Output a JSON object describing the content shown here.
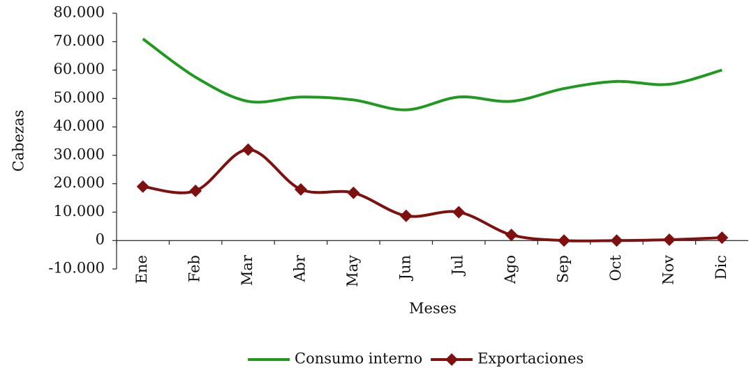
{
  "chart_data": {
    "type": "line",
    "x_label": "Meses",
    "y_label": "Cabezas",
    "categories": [
      "Ene",
      "Feb",
      "Mar",
      "Abr",
      "May",
      "Jun",
      "Jul",
      "Ago",
      "Sep",
      "Oct",
      "Nov",
      "Dic"
    ],
    "series": [
      {
        "name": "Consumo interno",
        "color": "#1f9a1f",
        "marker": "none",
        "smooth": true,
        "values": [
          71000,
          57500,
          49000,
          50500,
          49500,
          46000,
          50500,
          49000,
          53500,
          56000,
          55000,
          60000
        ]
      },
      {
        "name": "Exportaciones",
        "color": "#7f1010",
        "marker": "diamond",
        "smooth": true,
        "values": [
          19000,
          17500,
          32000,
          18000,
          16800,
          8700,
          10000,
          2000,
          0,
          0,
          300,
          1000
        ]
      }
    ],
    "ylim": [
      -10000,
      80000
    ],
    "yticks": [
      {
        "value": -10000,
        "label": "-10.000"
      },
      0,
      {
        "value": 10000,
        "label": "10.000"
      },
      {
        "value": 20000,
        "label": "20.000"
      },
      {
        "value": 30000,
        "label": "30.000"
      },
      {
        "value": 40000,
        "label": "40.000"
      },
      {
        "value": 50000,
        "label": "50.000"
      },
      {
        "value": 60000,
        "label": "60.000"
      },
      {
        "value": 70000,
        "label": "70.000"
      },
      {
        "value": 80000,
        "label": "80.000"
      }
    ],
    "grid": false,
    "legend": "bottom"
  }
}
